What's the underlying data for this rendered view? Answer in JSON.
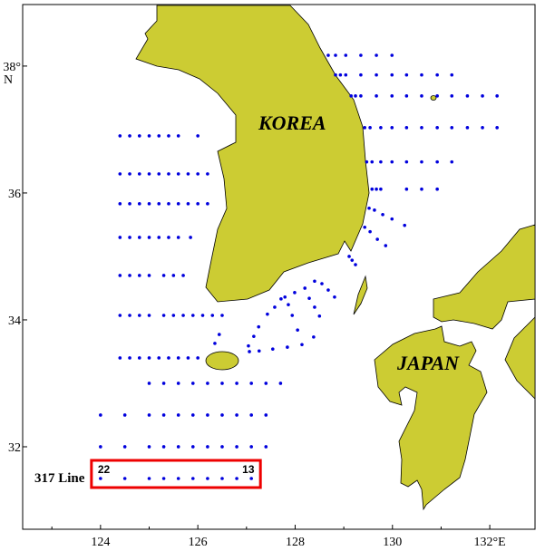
{
  "map": {
    "lon_range": [
      122.4,
      132.93
    ],
    "lat_range": [
      30.7,
      38.97
    ],
    "x_ticks": [
      124,
      126,
      128,
      130,
      132
    ],
    "x_tick_labels": [
      "124",
      "126",
      "128",
      "130",
      "132°E"
    ],
    "y_ticks": [
      32,
      34,
      36,
      38
    ],
    "y_tick_labels": [
      "32",
      "34",
      "36",
      "38°"
    ],
    "y_unit_label": "N",
    "land_color": "#cccc33",
    "station_color": "#0000dd",
    "highlight_color": "#ee0000",
    "labels": {
      "korea": "KOREA",
      "japan": "JAPAN"
    }
  },
  "highlight": {
    "line_name": "317 Line",
    "start_station": "22",
    "end_station": "13",
    "lat": 31.5,
    "lons": [
      124.0,
      124.5,
      125.0,
      125.3,
      125.6,
      125.9,
      126.2,
      126.5,
      126.8,
      127.1
    ]
  },
  "station_rows": [
    {
      "lat": 36.9,
      "lons": [
        124.4,
        124.6,
        124.8,
        125.0,
        125.2,
        125.4,
        125.6,
        126.0
      ]
    },
    {
      "lat": 36.3,
      "lons": [
        124.4,
        124.6,
        124.8,
        125.0,
        125.2,
        125.4,
        125.6,
        125.8,
        126.0,
        126.2
      ]
    },
    {
      "lat": 35.83,
      "lons": [
        124.4,
        124.6,
        124.8,
        125.0,
        125.2,
        125.4,
        125.6,
        125.8,
        126.0,
        126.2
      ]
    },
    {
      "lat": 35.3,
      "lons": [
        124.4,
        124.6,
        124.8,
        125.0,
        125.2,
        125.4,
        125.6,
        125.85
      ]
    },
    {
      "lat": 34.7,
      "lons": [
        124.4,
        124.6,
        124.8,
        125.0,
        125.3,
        125.5,
        125.7
      ]
    },
    {
      "lat": 34.07,
      "lons": [
        124.4,
        124.6,
        124.8,
        125.0,
        125.3,
        125.5,
        125.7,
        125.9,
        126.1,
        126.3,
        126.5
      ]
    },
    {
      "lat": 33.4,
      "lons": [
        124.4,
        124.6,
        124.8,
        125.0,
        125.2,
        125.4,
        125.6,
        125.8,
        126.0
      ]
    },
    {
      "lat": 33.0,
      "lons": [
        125.0,
        125.3,
        125.6,
        125.9,
        126.2,
        126.5,
        126.8,
        127.1,
        127.4,
        127.7
      ]
    },
    {
      "lat": 32.5,
      "lons": [
        124.0,
        124.5,
        125.0,
        125.3,
        125.6,
        125.9,
        126.2,
        126.5,
        126.8,
        127.1,
        127.4
      ]
    },
    {
      "lat": 32.0,
      "lons": [
        124.0,
        124.5,
        125.0,
        125.3,
        125.6,
        125.9,
        126.2,
        126.5,
        126.8,
        127.1,
        127.4
      ]
    },
    {
      "lat": 38.17,
      "lons": [
        128.68,
        128.83,
        129.04,
        129.35,
        129.67,
        129.99
      ]
    },
    {
      "lat": 37.86,
      "lons": [
        128.83,
        128.93,
        129.04,
        129.35,
        129.67,
        129.99,
        130.29,
        130.6,
        130.92,
        131.22
      ]
    },
    {
      "lat": 37.53,
      "lons": [
        129.15,
        129.24,
        129.35,
        129.67,
        129.99,
        130.29,
        130.6,
        130.92,
        131.22,
        131.54,
        131.85,
        132.15
      ]
    },
    {
      "lat": 37.03,
      "lons": [
        129.43,
        129.54,
        129.76,
        129.99,
        130.29,
        130.6,
        130.92,
        131.22,
        131.54,
        131.85,
        132.15
      ]
    },
    {
      "lat": 36.49,
      "lons": [
        129.47,
        129.58,
        129.76,
        129.99,
        130.29,
        130.6,
        130.92,
        131.22
      ]
    },
    {
      "lat": 36.06,
      "lons": [
        129.58,
        129.67,
        129.76,
        130.29,
        130.6,
        130.92
      ]
    }
  ],
  "station_points": [
    [
      129.52,
      35.76
    ],
    [
      129.63,
      35.73
    ],
    [
      129.8,
      35.66
    ],
    [
      129.99,
      35.59
    ],
    [
      130.25,
      35.49
    ],
    [
      129.43,
      35.46
    ],
    [
      129.54,
      35.39
    ],
    [
      129.69,
      35.27
    ],
    [
      129.86,
      35.17
    ],
    [
      129.11,
      35.0
    ],
    [
      129.17,
      34.94
    ],
    [
      129.24,
      34.87
    ],
    [
      128.4,
      34.61
    ],
    [
      128.55,
      34.57
    ],
    [
      128.68,
      34.47
    ],
    [
      128.81,
      34.36
    ],
    [
      128.2,
      34.5
    ],
    [
      127.99,
      34.43
    ],
    [
      127.79,
      34.36
    ],
    [
      127.71,
      34.33
    ],
    [
      127.58,
      34.2
    ],
    [
      127.43,
      34.09
    ],
    [
      127.25,
      33.89
    ],
    [
      127.15,
      33.74
    ],
    [
      127.04,
      33.59
    ],
    [
      127.06,
      33.5
    ],
    [
      127.26,
      33.51
    ],
    [
      127.54,
      33.54
    ],
    [
      127.84,
      33.57
    ],
    [
      128.14,
      33.61
    ],
    [
      128.38,
      33.73
    ],
    [
      128.05,
      33.84
    ],
    [
      128.5,
      34.06
    ],
    [
      128.4,
      34.2
    ],
    [
      128.29,
      34.34
    ],
    [
      127.94,
      34.07
    ],
    [
      127.86,
      34.24
    ],
    [
      126.44,
      33.77
    ],
    [
      126.35,
      33.63
    ]
  ]
}
